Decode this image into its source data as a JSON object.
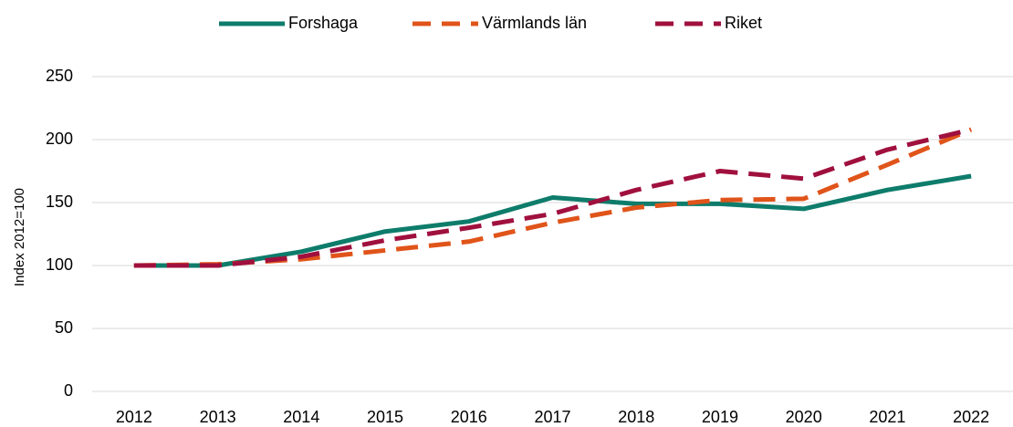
{
  "chart_data": {
    "type": "line",
    "ylabel": "Index 2012=100",
    "categories": [
      "2012",
      "2013",
      "2014",
      "2015",
      "2016",
      "2017",
      "2018",
      "2019",
      "2020",
      "2021",
      "2022"
    ],
    "series": [
      {
        "name": "Forshaga",
        "color": "#0e7c6b",
        "style": "solid",
        "values": [
          100,
          100,
          111,
          127,
          135,
          154,
          149,
          149,
          145,
          160,
          171
        ]
      },
      {
        "name": "Värmlands län",
        "color": "#e0541a",
        "style": "dashed",
        "values": [
          100,
          101,
          105,
          112,
          119,
          134,
          146,
          152,
          153,
          180,
          208
        ]
      },
      {
        "name": "Riket",
        "color": "#a0103e",
        "style": "dashed",
        "values": [
          100,
          100,
          107,
          120,
          130,
          141,
          160,
          175,
          169,
          192,
          208
        ]
      }
    ],
    "ylim": [
      0,
      250
    ],
    "yticks": [
      0,
      50,
      100,
      150,
      200,
      250
    ],
    "grid": true,
    "legend": "top"
  }
}
